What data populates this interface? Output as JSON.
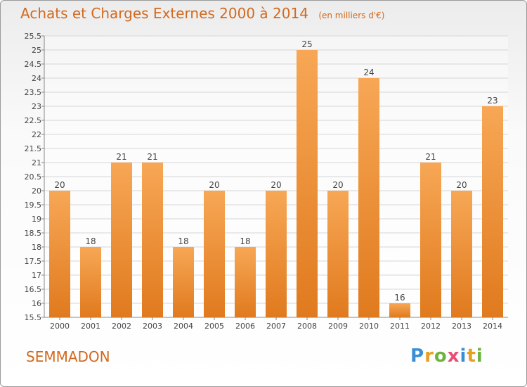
{
  "title": "Achats et Charges Externes 2000 à 2014",
  "subtitle": "(en milliers d'€)",
  "commune": "SEMMADON",
  "brand": [
    "P",
    "r",
    "o",
    "x",
    "i",
    "t",
    "i"
  ],
  "colors": {
    "bar_top": "#f7a755",
    "bar_bottom": "#e07a1e",
    "accent": "#d2691e"
  },
  "chart_data": {
    "type": "bar",
    "title": "Achats et Charges Externes 2000 à 2014",
    "subtitle": "(en milliers d'€)",
    "categories": [
      "2000",
      "2001",
      "2002",
      "2003",
      "2004",
      "2005",
      "2006",
      "2007",
      "2008",
      "2009",
      "2010",
      "2011",
      "2012",
      "2013",
      "2014"
    ],
    "values": [
      20,
      18,
      21,
      21,
      18,
      20,
      18,
      20,
      25,
      20,
      24,
      16,
      21,
      20,
      23
    ],
    "ylim": [
      15.5,
      25.5
    ],
    "yticks": [
      "15.5",
      "16",
      "16.5",
      "17",
      "17.5",
      "18",
      "18.5",
      "19",
      "19.5",
      "20",
      "20.5",
      "21",
      "21.5",
      "22",
      "22.5",
      "23",
      "23.5",
      "24",
      "24.5",
      "25",
      "25.5"
    ],
    "grid": true,
    "xlabel": "",
    "ylabel": ""
  }
}
